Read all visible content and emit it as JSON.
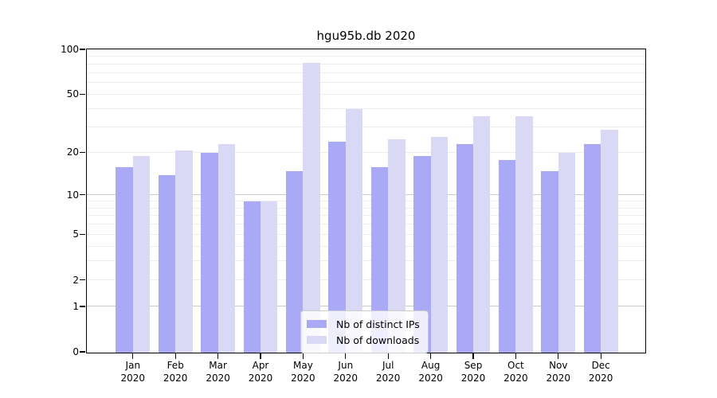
{
  "chart_data": {
    "type": "bar",
    "title": "hgu95b.db 2020",
    "xlabel": "",
    "ylabel": "",
    "y_scale": "log1p",
    "ylim": [
      0,
      100
    ],
    "grid": true,
    "legend_position": "bottom-center",
    "year": "2020",
    "months": [
      "Jan",
      "Feb",
      "Mar",
      "Apr",
      "May",
      "Jun",
      "Jul",
      "Aug",
      "Sep",
      "Oct",
      "Nov",
      "Dec"
    ],
    "series": [
      {
        "name": "Nb of distinct IPs",
        "color": "#a9a9f5",
        "values": [
          16,
          14,
          20,
          9,
          15,
          24,
          16,
          19,
          23,
          18,
          15,
          23
        ]
      },
      {
        "name": "Nb of downloads",
        "color": "#d9d9f6",
        "values": [
          19,
          21,
          23,
          9,
          82,
          40,
          25,
          26,
          36,
          36,
          20,
          29
        ]
      }
    ],
    "y_tick_values": [
      0,
      1,
      2,
      5,
      10,
      20,
      50,
      100
    ],
    "y_tick_labels": [
      "0",
      "1",
      "2",
      "5",
      "10",
      "20",
      "50",
      "100"
    ],
    "major_gridline_values": [
      1,
      10
    ],
    "minor_gridline_values": [
      2,
      3,
      4,
      5,
      6,
      7,
      8,
      9,
      20,
      30,
      40,
      50,
      60,
      70,
      80,
      90
    ],
    "colors": {
      "minor_gridline": "#ededed",
      "major_gridline": "#c9c9c9",
      "axis": "#000000",
      "legend_border": "#cccccc"
    }
  }
}
